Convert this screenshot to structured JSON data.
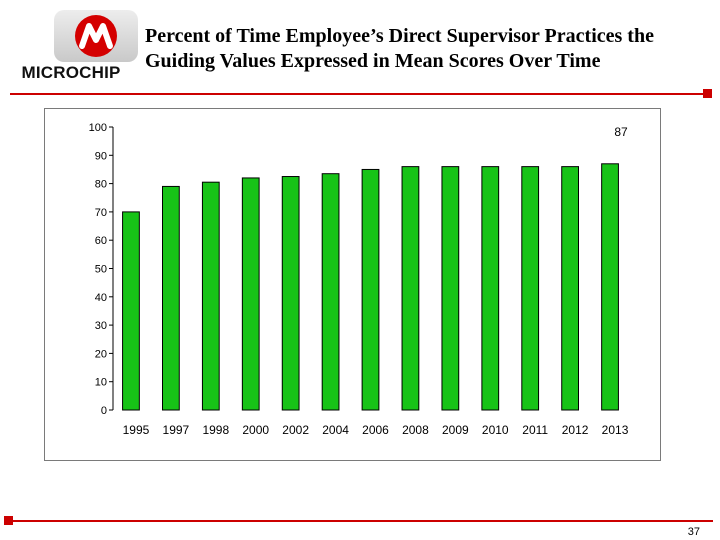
{
  "brand": {
    "logo_text": "MICROCHIP",
    "accent_color": "#cc0000",
    "logo_icon": "microchip-logo-icon"
  },
  "slide": {
    "title_line1": "Percent of Time Employee’s Direct Supervisor Practices the",
    "title_line2": "Guiding Values Expressed in Mean Scores Over Time",
    "page_number": "37"
  },
  "chart_data": {
    "type": "bar",
    "title": "",
    "xlabel": "",
    "ylabel": "",
    "categories": [
      "1995",
      "1997",
      "1998",
      "2000",
      "2002",
      "2004",
      "2006",
      "2008",
      "2009",
      "2010",
      "2011",
      "2012",
      "2013"
    ],
    "values": [
      70,
      79,
      80.5,
      82,
      82.5,
      83.5,
      85,
      86,
      86,
      86,
      86,
      86,
      87
    ],
    "ylim": [
      0,
      100
    ],
    "yticks": [
      0,
      10,
      20,
      30,
      40,
      50,
      60,
      70,
      80,
      90,
      100
    ],
    "bar_color": "#17c317",
    "grid": false,
    "data_labels": [
      {
        "category": "2013",
        "text": "87"
      }
    ]
  }
}
